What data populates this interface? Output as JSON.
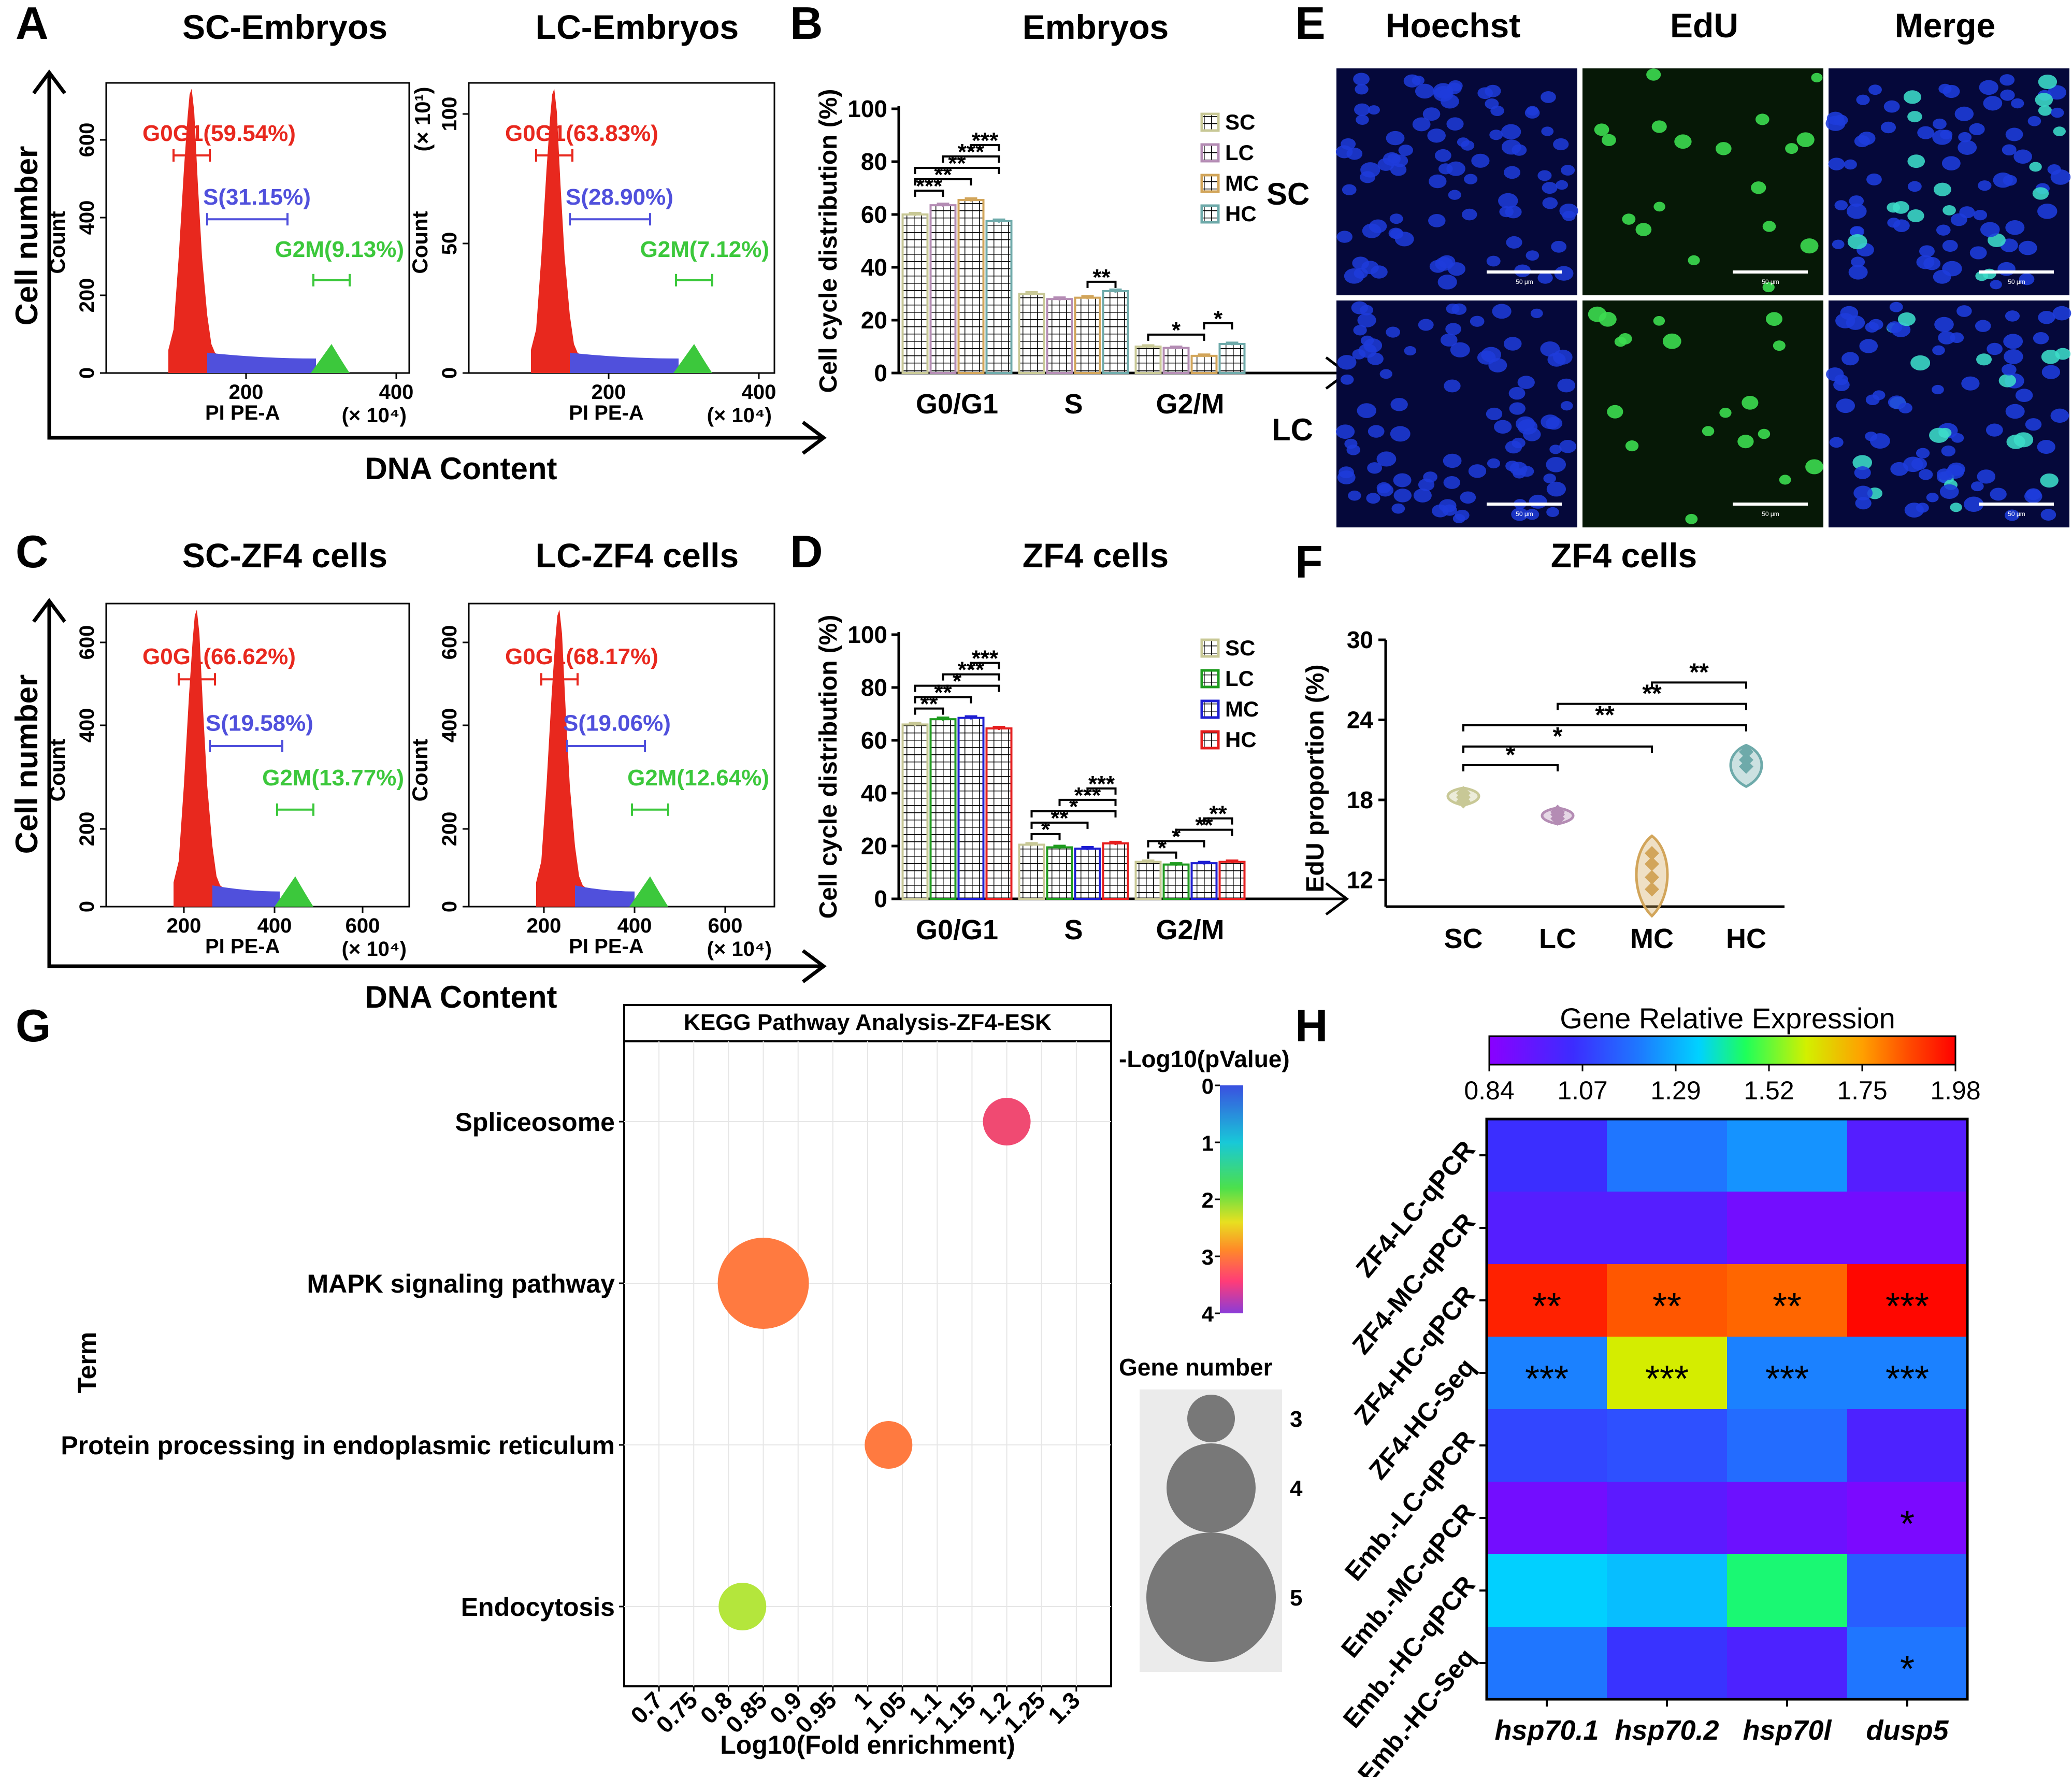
{
  "panels": {
    "A": {
      "letter": "A",
      "titles": [
        "SC-Embryos",
        "LC-Embryos"
      ],
      "ylabel": "Cell number",
      "xlabel": "DNA Content",
      "sub_ylabel": "Count",
      "sub_xlabel": "PI PE-A",
      "x_unit": "(× 10⁴)",
      "y_unit": "(× 10¹)",
      "plots": [
        {
          "yticks": [
            "0",
            "200",
            "400",
            "600"
          ],
          "xticks": [
            "200",
            "400"
          ],
          "g0g1": "G0G1(59.54%)",
          "s": "S(31.15%)",
          "g2m": "G2M(9.13%)"
        },
        {
          "yticks": [
            "0",
            "50",
            "100"
          ],
          "xticks": [
            "200",
            "400"
          ],
          "g0g1": "G0G1(63.83%)",
          "s": "S(28.90%)",
          "g2m": "G2M(7.12%)"
        }
      ]
    },
    "C": {
      "letter": "C",
      "titles": [
        "SC-ZF4 cells",
        "LC-ZF4 cells"
      ],
      "ylabel": "Cell number",
      "xlabel": "DNA Content",
      "sub_ylabel": "Count",
      "sub_xlabel": "PI PE-A",
      "x_unit": "(× 10⁴)",
      "plots": [
        {
          "yticks": [
            "0",
            "200",
            "400",
            "600"
          ],
          "xticks": [
            "200",
            "400",
            "600"
          ],
          "g0g1": "G0G1(66.62%)",
          "s": "S(19.58%)",
          "g2m": "G2M(13.77%)"
        },
        {
          "yticks": [
            "0",
            "200",
            "400",
            "600"
          ],
          "xticks": [
            "200",
            "400",
            "600"
          ],
          "g0g1": "G0G1(68.17%)",
          "s": "S(19.06%)",
          "g2m": "G2M(12.64%)"
        }
      ]
    },
    "B": {
      "letter": "B",
      "title": "Embryos"
    },
    "D": {
      "letter": "D",
      "title": "ZF4 cells"
    },
    "E": {
      "letter": "E",
      "columns": [
        "Hoechst",
        "EdU",
        "Merge"
      ],
      "rows": [
        "SC",
        "LC"
      ],
      "scalebar_label": "50 μm"
    },
    "F": {
      "letter": "F",
      "title": "ZF4 cells"
    },
    "G": {
      "letter": "G"
    },
    "H": {
      "letter": "H"
    }
  },
  "colors": {
    "SC": "#c8c896",
    "LC_B": "#b48cb4",
    "MC_B": "#d2a55a",
    "HC_B": "#6eaaaa",
    "LC_D": "#1e9b1e",
    "MC_D": "#1e1ed2",
    "HC_D": "#e61e1e",
    "G0G1": "#e8281e",
    "S": "#5050dc",
    "G2M": "#3cc83c"
  },
  "chart_data": [
    {
      "id": "B",
      "type": "bar",
      "title": "Embryos",
      "ylabel": "Cell cycle distribution (%)",
      "categories": [
        "G0/G1",
        "S",
        "G2/M"
      ],
      "ylim": [
        0,
        100
      ],
      "yticks": [
        0,
        20,
        40,
        60,
        80,
        100
      ],
      "series": [
        {
          "name": "SC",
          "values": [
            60,
            30,
            10
          ],
          "errors": [
            0.6,
            0.6,
            0.5
          ]
        },
        {
          "name": "LC",
          "values": [
            63.5,
            28,
            9.5
          ],
          "errors": [
            0.6,
            0.6,
            0.5
          ]
        },
        {
          "name": "MC",
          "values": [
            65.5,
            28.5,
            6.5
          ],
          "errors": [
            0.6,
            0.6,
            0.5
          ]
        },
        {
          "name": "HC",
          "values": [
            57.5,
            31,
            11
          ],
          "errors": [
            0.6,
            0.6,
            0.5
          ]
        }
      ],
      "legend": [
        "SC",
        "LC",
        "MC",
        "HC"
      ],
      "significance": [
        {
          "cat": 0,
          "a": 0,
          "b": 1,
          "label": "***"
        },
        {
          "cat": 0,
          "a": 0,
          "b": 2,
          "label": "**"
        },
        {
          "cat": 0,
          "a": 0,
          "b": 3,
          "label": "**"
        },
        {
          "cat": 0,
          "a": 1,
          "b": 3,
          "label": "***"
        },
        {
          "cat": 0,
          "a": 2,
          "b": 3,
          "label": "***"
        },
        {
          "cat": 1,
          "a": 2,
          "b": 3,
          "label": "**"
        },
        {
          "cat": 2,
          "a": 0,
          "b": 2,
          "label": "*"
        },
        {
          "cat": 2,
          "a": 2,
          "b": 3,
          "label": "*"
        }
      ]
    },
    {
      "id": "D",
      "type": "bar",
      "title": "ZF4 cells",
      "ylabel": "Cell cycle distribution (%)",
      "categories": [
        "G0/G1",
        "S",
        "G2/M"
      ],
      "ylim": [
        0,
        100
      ],
      "yticks": [
        0,
        20,
        40,
        60,
        80,
        100
      ],
      "series": [
        {
          "name": "SC",
          "values": [
            66,
            20.5,
            14
          ],
          "errors": [
            0.6,
            0.6,
            0.5
          ]
        },
        {
          "name": "LC",
          "values": [
            68,
            19.5,
            13
          ],
          "errors": [
            0.6,
            0.6,
            0.5
          ]
        },
        {
          "name": "MC",
          "values": [
            68.5,
            19,
            13.5
          ],
          "errors": [
            0.6,
            0.6,
            0.5
          ]
        },
        {
          "name": "HC",
          "values": [
            64.5,
            21,
            14
          ],
          "errors": [
            0.6,
            0.6,
            0.5
          ]
        }
      ],
      "legend": [
        "SC",
        "LC",
        "MC",
        "HC"
      ],
      "significance": [
        {
          "cat": 0,
          "a": 0,
          "b": 1,
          "label": "**"
        },
        {
          "cat": 0,
          "a": 0,
          "b": 2,
          "label": "**"
        },
        {
          "cat": 0,
          "a": 0,
          "b": 3,
          "label": "*"
        },
        {
          "cat": 0,
          "a": 1,
          "b": 3,
          "label": "***"
        },
        {
          "cat": 0,
          "a": 2,
          "b": 3,
          "label": "***"
        },
        {
          "cat": 1,
          "a": 0,
          "b": 1,
          "label": "*"
        },
        {
          "cat": 1,
          "a": 0,
          "b": 2,
          "label": "**"
        },
        {
          "cat": 1,
          "a": 0,
          "b": 3,
          "label": "*"
        },
        {
          "cat": 1,
          "a": 1,
          "b": 3,
          "label": "***"
        },
        {
          "cat": 1,
          "a": 2,
          "b": 3,
          "label": "***"
        },
        {
          "cat": 2,
          "a": 0,
          "b": 1,
          "label": "*"
        },
        {
          "cat": 2,
          "a": 0,
          "b": 2,
          "label": "*"
        },
        {
          "cat": 2,
          "a": 1,
          "b": 3,
          "label": "**"
        },
        {
          "cat": 2,
          "a": 2,
          "b": 3,
          "label": "**"
        }
      ]
    },
    {
      "id": "F",
      "type": "violin",
      "title": "ZF4 cells",
      "ylabel": "EdU proportion (%)",
      "categories": [
        "SC",
        "LC",
        "MC",
        "HC"
      ],
      "ylim": [
        10,
        30
      ],
      "yticks": [
        12,
        18,
        24,
        30
      ],
      "groups": [
        {
          "name": "SC",
          "points": [
            17.9,
            18.2,
            18.5
          ],
          "range": [
            17.6,
            18.9
          ]
        },
        {
          "name": "LC",
          "points": [
            16.6,
            16.9,
            17.1
          ],
          "range": [
            16.2,
            17.4
          ]
        },
        {
          "name": "MC",
          "points": [
            11.3,
            12.2,
            13.2,
            14.0
          ],
          "range": [
            9.3,
            15.3
          ]
        },
        {
          "name": "HC",
          "points": [
            20.5,
            21.0,
            21.6
          ],
          "range": [
            19.0,
            22.1
          ]
        }
      ],
      "significance": [
        {
          "a": 0,
          "b": 1,
          "label": "*"
        },
        {
          "a": 0,
          "b": 2,
          "label": "*"
        },
        {
          "a": 0,
          "b": 3,
          "label": "**"
        },
        {
          "a": 1,
          "b": 3,
          "label": "**"
        },
        {
          "a": 2,
          "b": 3,
          "label": "**"
        }
      ]
    },
    {
      "id": "G",
      "type": "scatter",
      "title": "KEGG Pathway Analysis-ZF4-ESK",
      "xlabel": "Log10(Fold enrichment)",
      "ylabel": "Term",
      "xlim": [
        0.65,
        1.35
      ],
      "xticks": [
        "0.7",
        "0.75",
        "0.8",
        "0.85",
        "0.9",
        "0.95",
        "1",
        "1.05",
        "1.1",
        "1.15",
        "1.2",
        "1.25",
        "1.3"
      ],
      "terms": [
        {
          "name": "Spliceosome",
          "x": 1.2,
          "neglog10p": 3.4,
          "genes": 3
        },
        {
          "name": "MAPK signaling pathway",
          "x": 0.85,
          "neglog10p": 2.8,
          "genes": 5
        },
        {
          "name": "Protein processing in endoplasmic reticulum",
          "x": 1.03,
          "neglog10p": 2.7,
          "genes": 3
        },
        {
          "name": "Endocytosis",
          "x": 0.82,
          "neglog10p": 1.7,
          "genes": 3
        }
      ],
      "color_legend": {
        "title": "-Log10(pValue)",
        "ticks": [
          "0",
          "1",
          "2",
          "3",
          "4"
        ]
      },
      "size_legend": {
        "title": "Gene number",
        "values": [
          "3",
          "4",
          "5"
        ]
      }
    },
    {
      "id": "H",
      "type": "heatmap",
      "title": "Gene Relative Expression",
      "columns": [
        "hsp70.1",
        "hsp70.2",
        "hsp70l",
        "dusp5"
      ],
      "rows": [
        "ZF4-LC-qPCR",
        "ZF4-MC-qPCR",
        "ZF4-HC-qPCR",
        "ZF4-HC-Seq",
        "Emb.-LC-qPCR",
        "Emb.-MC-qPCR",
        "Emb.-HC-qPCR",
        "Emb.-HC-Seq"
      ],
      "values": [
        [
          1.05,
          1.2,
          1.25,
          0.98
        ],
        [
          0.98,
          0.98,
          0.9,
          0.9
        ],
        [
          1.93,
          1.85,
          1.83,
          1.97
        ],
        [
          1.22,
          1.62,
          1.22,
          1.22
        ],
        [
          1.1,
          1.12,
          1.18,
          1.0
        ],
        [
          0.9,
          0.96,
          0.92,
          0.88
        ],
        [
          1.35,
          1.32,
          1.45,
          1.15
        ],
        [
          1.2,
          1.06,
          1.0,
          1.2
        ]
      ],
      "stars": [
        [
          "",
          "",
          "",
          ""
        ],
        [
          "",
          "",
          "",
          ""
        ],
        [
          "**",
          "**",
          "**",
          "***"
        ],
        [
          "***",
          "***",
          "***",
          "***"
        ],
        [
          "",
          "",
          "",
          ""
        ],
        [
          "",
          "",
          "",
          "*"
        ],
        [
          "",
          "",
          "",
          ""
        ],
        [
          "",
          "",
          "",
          "*"
        ]
      ],
      "scale_min": 0.84,
      "scale_max": 1.98,
      "scale_ticks": [
        "0.84",
        "1.07",
        "1.29",
        "1.52",
        "1.75",
        "1.98"
      ]
    }
  ]
}
